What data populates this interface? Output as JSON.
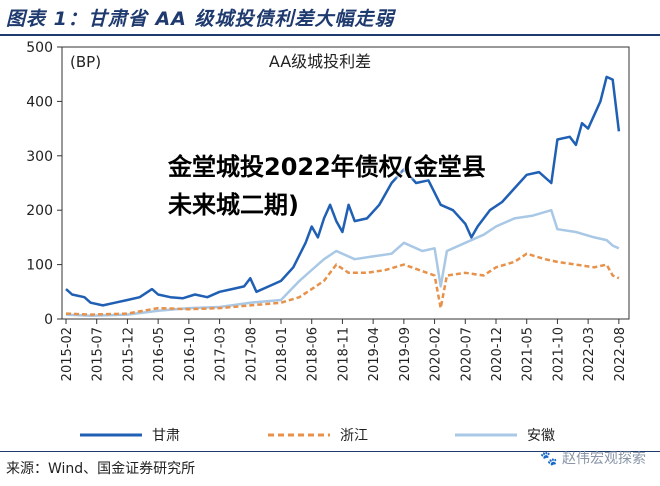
{
  "figure": {
    "title": "图表 1：甘肃省 AA 级城投债利差大幅走弱",
    "source": "来源：Wind、国金证券研究所",
    "watermark": "🐾 赵伟宏观探索"
  },
  "overlay": {
    "text": "金堂城投2022年债权(金堂县未来城二期)"
  },
  "chart_data": {
    "type": "line",
    "title": "AA级城投利差",
    "unit_label": "(BP)",
    "ylim": [
      0,
      500
    ],
    "yticks": [
      0,
      100,
      200,
      300,
      400,
      500
    ],
    "xlim": [
      "2015-02",
      "2022-09"
    ],
    "xticks": [
      "2015-02",
      "2015-07",
      "2015-12",
      "2016-05",
      "2016-10",
      "2017-03",
      "2017-08",
      "2018-01",
      "2018-06",
      "2018-11",
      "2019-04",
      "2019-09",
      "2020-02",
      "2020-07",
      "2020-12",
      "2021-05",
      "2021-10",
      "2022-03",
      "2022-08"
    ],
    "grid": false,
    "legend_position": "bottom",
    "series": [
      {
        "name": "甘肃",
        "color": "#1f5fb4",
        "style": "solid",
        "points": [
          [
            "2015-02",
            55
          ],
          [
            "2015-03",
            45
          ],
          [
            "2015-05",
            40
          ],
          [
            "2015-06",
            30
          ],
          [
            "2015-08",
            25
          ],
          [
            "2015-10",
            30
          ],
          [
            "2015-12",
            35
          ],
          [
            "2016-02",
            40
          ],
          [
            "2016-04",
            55
          ],
          [
            "2016-05",
            45
          ],
          [
            "2016-07",
            40
          ],
          [
            "2016-09",
            38
          ],
          [
            "2016-11",
            45
          ],
          [
            "2017-01",
            40
          ],
          [
            "2017-03",
            50
          ],
          [
            "2017-05",
            55
          ],
          [
            "2017-07",
            60
          ],
          [
            "2017-08",
            75
          ],
          [
            "2017-09",
            50
          ],
          [
            "2017-11",
            60
          ],
          [
            "2018-01",
            70
          ],
          [
            "2018-03",
            95
          ],
          [
            "2018-05",
            140
          ],
          [
            "2018-06",
            170
          ],
          [
            "2018-07",
            150
          ],
          [
            "2018-08",
            185
          ],
          [
            "2018-09",
            210
          ],
          [
            "2018-10",
            180
          ],
          [
            "2018-11",
            160
          ],
          [
            "2018-12",
            210
          ],
          [
            "2019-01",
            180
          ],
          [
            "2019-03",
            185
          ],
          [
            "2019-05",
            210
          ],
          [
            "2019-07",
            250
          ],
          [
            "2019-09",
            275
          ],
          [
            "2019-11",
            250
          ],
          [
            "2020-01",
            255
          ],
          [
            "2020-03",
            210
          ],
          [
            "2020-05",
            200
          ],
          [
            "2020-07",
            175
          ],
          [
            "2020-08",
            150
          ],
          [
            "2020-09",
            170
          ],
          [
            "2020-11",
            200
          ],
          [
            "2021-01",
            215
          ],
          [
            "2021-03",
            240
          ],
          [
            "2021-05",
            265
          ],
          [
            "2021-07",
            270
          ],
          [
            "2021-09",
            250
          ],
          [
            "2021-10",
            330
          ],
          [
            "2021-12",
            335
          ],
          [
            "2022-01",
            320
          ],
          [
            "2022-02",
            360
          ],
          [
            "2022-03",
            350
          ],
          [
            "2022-05",
            400
          ],
          [
            "2022-06",
            445
          ],
          [
            "2022-07",
            440
          ],
          [
            "2022-08",
            345
          ]
        ]
      },
      {
        "name": "浙江",
        "color": "#e8914a",
        "style": "dashed",
        "points": [
          [
            "2015-02",
            10
          ],
          [
            "2015-06",
            8
          ],
          [
            "2015-12",
            10
          ],
          [
            "2016-05",
            20
          ],
          [
            "2016-10",
            18
          ],
          [
            "2017-03",
            20
          ],
          [
            "2017-08",
            25
          ],
          [
            "2018-01",
            30
          ],
          [
            "2018-04",
            40
          ],
          [
            "2018-06",
            55
          ],
          [
            "2018-08",
            70
          ],
          [
            "2018-10",
            100
          ],
          [
            "2018-12",
            85
          ],
          [
            "2019-03",
            85
          ],
          [
            "2019-06",
            90
          ],
          [
            "2019-09",
            100
          ],
          [
            "2019-12",
            88
          ],
          [
            "2020-02",
            80
          ],
          [
            "2020-03",
            20
          ],
          [
            "2020-04",
            80
          ],
          [
            "2020-07",
            85
          ],
          [
            "2020-10",
            80
          ],
          [
            "2020-12",
            95
          ],
          [
            "2021-03",
            105
          ],
          [
            "2021-05",
            120
          ],
          [
            "2021-08",
            110
          ],
          [
            "2021-10",
            105
          ],
          [
            "2022-01",
            100
          ],
          [
            "2022-04",
            95
          ],
          [
            "2022-06",
            100
          ],
          [
            "2022-07",
            80
          ],
          [
            "2022-08",
            75
          ]
        ]
      },
      {
        "name": "安徽",
        "color": "#a9c8e6",
        "style": "solid",
        "points": [
          [
            "2015-02",
            8
          ],
          [
            "2015-06",
            6
          ],
          [
            "2015-12",
            8
          ],
          [
            "2016-05",
            15
          ],
          [
            "2016-10",
            20
          ],
          [
            "2017-03",
            22
          ],
          [
            "2017-08",
            30
          ],
          [
            "2018-01",
            35
          ],
          [
            "2018-04",
            70
          ],
          [
            "2018-06",
            90
          ],
          [
            "2018-08",
            110
          ],
          [
            "2018-10",
            125
          ],
          [
            "2019-01",
            110
          ],
          [
            "2019-04",
            115
          ],
          [
            "2019-07",
            120
          ],
          [
            "2019-09",
            140
          ],
          [
            "2019-12",
            125
          ],
          [
            "2020-02",
            130
          ],
          [
            "2020-03",
            60
          ],
          [
            "2020-04",
            125
          ],
          [
            "2020-07",
            140
          ],
          [
            "2020-10",
            155
          ],
          [
            "2020-12",
            170
          ],
          [
            "2021-03",
            185
          ],
          [
            "2021-06",
            190
          ],
          [
            "2021-09",
            200
          ],
          [
            "2021-10",
            165
          ],
          [
            "2022-01",
            160
          ],
          [
            "2022-04",
            150
          ],
          [
            "2022-06",
            145
          ],
          [
            "2022-07",
            135
          ],
          [
            "2022-08",
            130
          ]
        ]
      }
    ]
  }
}
